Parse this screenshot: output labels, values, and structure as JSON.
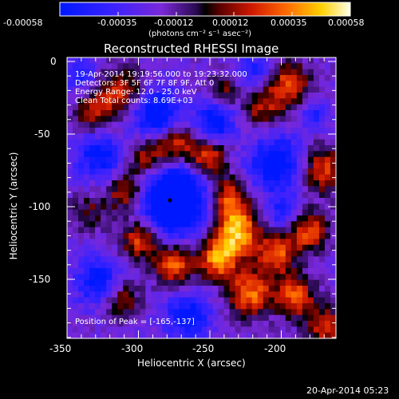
{
  "colorbar": {
    "ticks": [
      "-0.00058",
      "-0.00035",
      "-0.00012",
      "0.00012",
      "0.00035",
      "0.00058"
    ],
    "unit_label": "(photons cm⁻² s⁻¹ asec⁻²)"
  },
  "plot": {
    "title": "Reconstructed RHESSI Image",
    "xlabel": "Heliocentric X (arcsec)",
    "ylabel": "Heliocentric Y (arcsec)",
    "xticks": [
      "-350",
      "-300",
      "-250",
      "-200"
    ],
    "yticks": [
      "0",
      "-50",
      "-100",
      "-150"
    ],
    "info": [
      "19-Apr-2014 19:19:56.000 to 19:23:32.000",
      "Detectors: 3F 5F 6F 7F 8F 9F, Att 0",
      "Energy Range: 12.0 - 25.0 keV",
      "Clean     Total counts: 8.69E+03"
    ],
    "peak_label": "Position of Peak = [-165,-137]"
  },
  "footer": {
    "timestamp": "20-Apr-2014 05:23"
  },
  "colors": {
    "background": "#000000",
    "foreground": "#ffffff"
  }
}
